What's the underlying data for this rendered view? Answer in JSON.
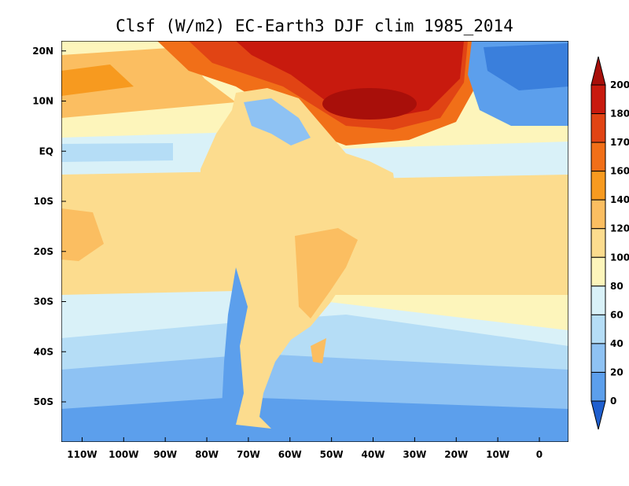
{
  "title": "Clsf (W/m2) EC-Earth3 DJF clim 1985_2014",
  "map": {
    "type": "filled-contour-map",
    "variable": "Clsf",
    "units": "W/m2",
    "model": "EC-Earth3",
    "season": "DJF",
    "period": "1985_2014",
    "lon_range": [
      -115,
      7
    ],
    "lat_range": [
      -58,
      22
    ],
    "x_ticks": [
      {
        "lon": -110,
        "label": "110W"
      },
      {
        "lon": -100,
        "label": "100W"
      },
      {
        "lon": -90,
        "label": "90W"
      },
      {
        "lon": -80,
        "label": "80W"
      },
      {
        "lon": -70,
        "label": "70W"
      },
      {
        "lon": -60,
        "label": "60W"
      },
      {
        "lon": -50,
        "label": "50W"
      },
      {
        "lon": -40,
        "label": "40W"
      },
      {
        "lon": -30,
        "label": "30W"
      },
      {
        "lon": -20,
        "label": "20W"
      },
      {
        "lon": -10,
        "label": "10W"
      },
      {
        "lon": 0,
        "label": "0"
      }
    ],
    "y_ticks": [
      {
        "lat": 20,
        "label": "20N"
      },
      {
        "lat": 10,
        "label": "10N"
      },
      {
        "lat": 0,
        "label": "EQ"
      },
      {
        "lat": -10,
        "label": "10S"
      },
      {
        "lat": -20,
        "label": "20S"
      },
      {
        "lat": -30,
        "label": "30S"
      },
      {
        "lat": -40,
        "label": "40S"
      },
      {
        "lat": -50,
        "label": "50S"
      }
    ]
  },
  "colorbar": {
    "levels": [
      0,
      20,
      40,
      60,
      80,
      100,
      120,
      140,
      160,
      170,
      180,
      200
    ],
    "labels": [
      "0",
      "20",
      "40",
      "60",
      "80",
      "100",
      "120",
      "140",
      "160",
      "170",
      "180",
      "200"
    ],
    "colors": [
      "#3a7fdc",
      "#5c9fec",
      "#8ec2f3",
      "#b5ddf6",
      "#d9f1f8",
      "#fdf5bb",
      "#fcdc8e",
      "#fbbe61",
      "#f79a1f",
      "#f16f18",
      "#e14414",
      "#c81a0e",
      "#a80f0a"
    ],
    "bottom_extension_color": "#1f5fcf",
    "top_extension_color": "#a80f0a"
  }
}
